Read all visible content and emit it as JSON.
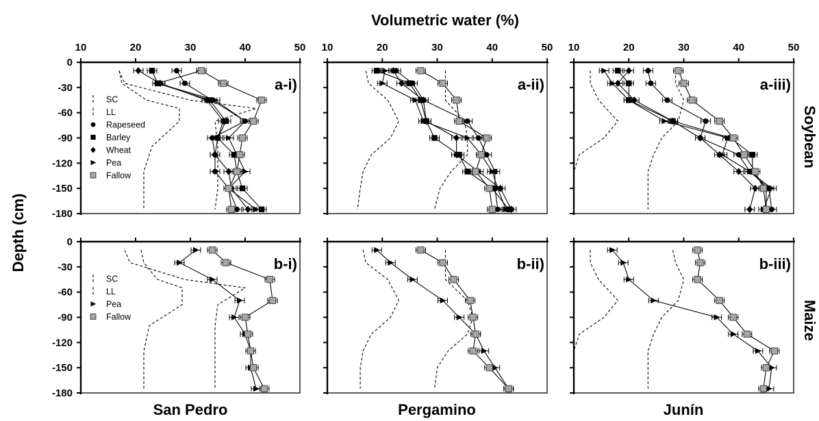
{
  "figure": {
    "top_title": "Volumetric water (%)",
    "y_title": "Depth (cm)",
    "row_labels": [
      "Soybean",
      "Maize"
    ],
    "col_labels": [
      "San Pedro",
      "Pergamino",
      "Junín"
    ],
    "x_ticks": [
      "10",
      "20",
      "30",
      "40",
      "50"
    ],
    "y_ticks": [
      "0",
      "-30",
      "-60",
      "-90",
      "-120",
      "-150",
      "-180"
    ],
    "legend_soybean": [
      "SC",
      "LL",
      "Rapeseed",
      "Barley",
      "Wheat",
      "Pea",
      "Fallow"
    ],
    "legend_maize": [
      "SC",
      "LL",
      "Pea",
      "Fallow"
    ]
  },
  "colors": {
    "ink": "#000000",
    "fallow_fill": "#a6a6a6",
    "fallow_stroke": "#444444"
  },
  "chart_data": [
    {
      "type": "line",
      "panel": "a-i)",
      "crop": "Soybean",
      "site": "San Pedro",
      "xlabel": "Volumetric water (%)",
      "ylabel": "Depth (cm)",
      "xlim": [
        10,
        50
      ],
      "ylim": [
        -180,
        0
      ],
      "depths": [
        -10,
        -25,
        -45,
        -70,
        -90,
        -110,
        -130,
        -150,
        -175
      ],
      "series": [
        {
          "name": "SC",
          "style": "dash",
          "x": [
            17,
            18,
            30,
            42,
            34.5,
            35,
            35,
            35,
            34.5
          ],
          "y": [
            -10,
            -25,
            -45,
            -55,
            -70,
            -100,
            -130,
            -150,
            -175
          ]
        },
        {
          "name": "LL",
          "style": "dash",
          "x": [
            17,
            17.5,
            22,
            28,
            28,
            23,
            21.5,
            21.5,
            21.5
          ],
          "y": [
            -10,
            -25,
            -45,
            -55,
            -70,
            -100,
            -130,
            -150,
            -175
          ]
        },
        {
          "name": "Rapeseed",
          "marker": "circle",
          "x": [
            27.5,
            29,
            34,
            40,
            34,
            34.5,
            34.5,
            37,
            38.5
          ],
          "y": [
            -10,
            -25,
            -45,
            -70,
            -90,
            -110,
            -130,
            -150,
            -175
          ]
        },
        {
          "name": "Barley",
          "marker": "square",
          "x": [
            23,
            24,
            33.5,
            36.5,
            35,
            38,
            38.5,
            39.5,
            43
          ],
          "y": [
            -10,
            -25,
            -45,
            -70,
            -90,
            -110,
            -130,
            -150,
            -175
          ]
        },
        {
          "name": "Wheat",
          "marker": "diamond",
          "x": [
            20.5,
            24.5,
            33,
            36,
            35,
            34.5,
            37,
            37.5,
            40.5
          ],
          "y": [
            -10,
            -25,
            -45,
            -70,
            -90,
            -110,
            -130,
            -150,
            -175
          ]
        },
        {
          "name": "Pea",
          "marker": "triangle",
          "x": [
            32,
            24,
            34.5,
            40,
            37,
            38.5,
            40,
            37,
            42
          ],
          "y": [
            -10,
            -25,
            -45,
            -70,
            -90,
            -110,
            -130,
            -150,
            -175
          ]
        },
        {
          "name": "Fallow",
          "marker": "gsquare",
          "x": [
            32,
            36,
            43,
            41.5,
            39.5,
            39,
            38.5,
            37,
            37.5
          ],
          "y": [
            -10,
            -25,
            -45,
            -70,
            -90,
            -110,
            -130,
            -150,
            -175
          ]
        }
      ]
    },
    {
      "type": "line",
      "panel": "a-ii)",
      "crop": "Soybean",
      "site": "Pergamino",
      "xlabel": "Volumetric water (%)",
      "ylabel": "Depth (cm)",
      "xlim": [
        10,
        50
      ],
      "ylim": [
        -180,
        0
      ],
      "depths": [
        -10,
        -25,
        -45,
        -70,
        -90,
        -110,
        -130,
        -150,
        -175
      ],
      "series": [
        {
          "name": "SC",
          "style": "dash",
          "x": [
            31.5,
            31.5,
            31.5,
            35,
            35.5,
            35.5,
            32.5,
            30.5,
            29.5
          ],
          "y": [
            -10,
            -25,
            -45,
            -70,
            -90,
            -110,
            -130,
            -150,
            -175
          ]
        },
        {
          "name": "LL",
          "style": "dash",
          "x": [
            17,
            17.5,
            21,
            23,
            21.5,
            18,
            16.5,
            16,
            15.5
          ],
          "y": [
            -10,
            -25,
            -45,
            -70,
            -90,
            -110,
            -130,
            -150,
            -175
          ]
        },
        {
          "name": "Rapeseed",
          "marker": "circle",
          "x": [
            22.5,
            25.5,
            27.5,
            35.5,
            37.5,
            39,
            40.5,
            40.5,
            41
          ],
          "y": [
            -10,
            -25,
            -45,
            -70,
            -90,
            -110,
            -130,
            -150,
            -175
          ]
        },
        {
          "name": "Barley",
          "marker": "square",
          "x": [
            19,
            25,
            27,
            28,
            29.5,
            34,
            35.5,
            40,
            43
          ],
          "y": [
            -10,
            -25,
            -45,
            -70,
            -90,
            -110,
            -130,
            -150,
            -175
          ]
        },
        {
          "name": "Wheat",
          "marker": "diamond",
          "x": [
            22,
            23.5,
            27.5,
            28,
            33.5,
            33.5,
            37.5,
            41.5,
            43.5
          ],
          "y": [
            -10,
            -25,
            -45,
            -70,
            -90,
            -110,
            -130,
            -150,
            -175
          ]
        },
        {
          "name": "Pea",
          "marker": "triangle",
          "x": [
            20.5,
            20,
            26,
            27.5,
            35.5,
            38,
            40,
            41,
            42.5
          ],
          "y": [
            -10,
            -25,
            -45,
            -70,
            -90,
            -110,
            -130,
            -150,
            -175
          ]
        },
        {
          "name": "Fallow",
          "marker": "gsquare",
          "x": [
            27,
            31,
            33.5,
            34,
            39,
            38,
            37,
            39.5,
            40
          ],
          "y": [
            -10,
            -25,
            -45,
            -70,
            -90,
            -110,
            -130,
            -150,
            -175
          ]
        }
      ]
    },
    {
      "type": "line",
      "panel": "a-iii)",
      "crop": "Soybean",
      "site": "Junín",
      "xlabel": "Volumetric water (%)",
      "ylabel": "Depth (cm)",
      "xlim": [
        10,
        50
      ],
      "ylim": [
        -180,
        0
      ],
      "depths": [
        -10,
        -25,
        -45,
        -70,
        -90,
        -110,
        -130,
        -150,
        -175
      ],
      "series": [
        {
          "name": "SC",
          "style": "dash",
          "x": [
            28.5,
            28.5,
            30,
            29,
            26,
            24.5,
            23.5,
            23.5,
            23.5
          ],
          "y": [
            -10,
            -25,
            -45,
            -70,
            -90,
            -110,
            -130,
            -150,
            -175
          ]
        },
        {
          "name": "LL",
          "style": "dash",
          "x": [
            13,
            13,
            14.5,
            18,
            15.5,
            11,
            10,
            10,
            10
          ],
          "y": [
            -10,
            -25,
            -45,
            -70,
            -90,
            -110,
            -130,
            -150,
            -175
          ]
        },
        {
          "name": "Rapeseed",
          "marker": "circle",
          "x": [
            23.5,
            24,
            27,
            34,
            33,
            40,
            42,
            45.5,
            46
          ],
          "y": [
            -10,
            -25,
            -45,
            -70,
            -90,
            -110,
            -130,
            -150,
            -175
          ]
        },
        {
          "name": "Barley",
          "marker": "square",
          "x": [
            18,
            20,
            20,
            28,
            38.5,
            42.5,
            42.5,
            45,
            45
          ],
          "y": [
            -10,
            -25,
            -45,
            -70,
            -90,
            -110,
            -130,
            -150,
            -175
          ]
        },
        {
          "name": "Wheat",
          "marker": "diamond",
          "x": [
            20,
            18,
            21,
            28,
            33,
            36.5,
            40,
            43,
            42
          ],
          "y": [
            -10,
            -25,
            -45,
            -70,
            -90,
            -110,
            -130,
            -150,
            -175
          ]
        },
        {
          "name": "Pea",
          "marker": "triangle",
          "x": [
            15.5,
            17,
            20,
            26.5,
            38,
            37,
            42,
            46,
            44.5
          ],
          "y": [
            -10,
            -25,
            -45,
            -70,
            -90,
            -110,
            -130,
            -150,
            -175
          ]
        },
        {
          "name": "Fallow",
          "marker": "gsquare",
          "x": [
            29,
            30,
            31.5,
            36.5,
            39,
            41,
            43,
            44.5,
            45
          ],
          "y": [
            -10,
            -25,
            -45,
            -70,
            -90,
            -110,
            -130,
            -150,
            -175
          ]
        }
      ]
    },
    {
      "type": "line",
      "panel": "b-i)",
      "crop": "Maize",
      "site": "San Pedro",
      "xlabel": "Volumetric water (%)",
      "ylabel": "Depth (cm)",
      "xlim": [
        10,
        50
      ],
      "ylim": [
        -180,
        0
      ],
      "depths": [
        -10,
        -25,
        -45,
        -70,
        -90,
        -110,
        -130,
        -150,
        -175
      ],
      "series": [
        {
          "name": "SC",
          "style": "dash",
          "x": [
            18,
            19,
            29,
            40,
            35,
            34.5,
            34.5,
            34.5,
            34.5
          ],
          "y": [
            -10,
            -25,
            -45,
            -55,
            -75,
            -100,
            -130,
            -150,
            -175
          ]
        },
        {
          "name": "LL",
          "style": "dash",
          "x": [
            21,
            21.5,
            24,
            28.5,
            28.5,
            22.5,
            21.5,
            21.5,
            21.5
          ],
          "y": [
            -10,
            -25,
            -45,
            -55,
            -75,
            -100,
            -130,
            -150,
            -175
          ]
        },
        {
          "name": "Pea",
          "marker": "triangle",
          "x": [
            31,
            28,
            34,
            39,
            38,
            40,
            41,
            41,
            42
          ],
          "y": [
            -10,
            -25,
            -45,
            -70,
            -90,
            -110,
            -130,
            -150,
            -175
          ]
        },
        {
          "name": "Fallow",
          "marker": "gsquare",
          "x": [
            34,
            36.5,
            44.5,
            45,
            40,
            40.5,
            41,
            41.5,
            43.5
          ],
          "y": [
            -10,
            -25,
            -45,
            -70,
            -90,
            -110,
            -130,
            -150,
            -175
          ]
        }
      ]
    },
    {
      "type": "line",
      "panel": "b-ii)",
      "crop": "Maize",
      "site": "Pergamino",
      "xlabel": "Volumetric water (%)",
      "ylabel": "Depth (cm)",
      "xlim": [
        10,
        50
      ],
      "ylim": [
        -180,
        0
      ],
      "depths": [
        -10,
        -25,
        -45,
        -70,
        -90,
        -110,
        -130,
        -150,
        -175
      ],
      "series": [
        {
          "name": "SC",
          "style": "dash",
          "x": [
            31.5,
            31.5,
            31.5,
            35.5,
            36.5,
            35.5,
            32,
            30,
            29.5
          ],
          "y": [
            -10,
            -25,
            -45,
            -70,
            -90,
            -110,
            -130,
            -150,
            -175
          ]
        },
        {
          "name": "LL",
          "style": "dash",
          "x": [
            16.5,
            17,
            21,
            23,
            21.5,
            18,
            16.5,
            16,
            16
          ],
          "y": [
            -10,
            -25,
            -45,
            -70,
            -90,
            -110,
            -130,
            -150,
            -175
          ]
        },
        {
          "name": "Pea",
          "marker": "triangle",
          "x": [
            19,
            21.5,
            25.5,
            31,
            34,
            37,
            38.5,
            40.5,
            43
          ],
          "y": [
            -10,
            -25,
            -45,
            -70,
            -90,
            -110,
            -130,
            -150,
            -175
          ]
        },
        {
          "name": "Fallow",
          "marker": "gsquare",
          "x": [
            27,
            31,
            33,
            36,
            36.5,
            37,
            36.5,
            39.5,
            43
          ],
          "y": [
            -10,
            -25,
            -45,
            -70,
            -90,
            -110,
            -130,
            -150,
            -175
          ]
        }
      ]
    },
    {
      "type": "line",
      "panel": "b-iii)",
      "crop": "Maize",
      "site": "Junín",
      "xlabel": "Volumetric water (%)",
      "ylabel": "Depth (cm)",
      "xlim": [
        10,
        50
      ],
      "ylim": [
        -180,
        0
      ],
      "depths": [
        -10,
        -25,
        -45,
        -70,
        -90,
        -110,
        -130,
        -150,
        -175
      ],
      "series": [
        {
          "name": "SC",
          "style": "dash",
          "x": [
            28,
            28.5,
            30,
            29,
            26,
            24.5,
            23.5,
            23.5,
            23.5
          ],
          "y": [
            -10,
            -25,
            -45,
            -70,
            -90,
            -110,
            -130,
            -150,
            -175
          ]
        },
        {
          "name": "LL",
          "style": "dash",
          "x": [
            13,
            13,
            14.5,
            18,
            15.5,
            11,
            10,
            10,
            10
          ],
          "y": [
            -10,
            -25,
            -45,
            -70,
            -90,
            -110,
            -130,
            -150,
            -175
          ]
        },
        {
          "name": "Pea",
          "marker": "triangle",
          "x": [
            17,
            19,
            20,
            24.5,
            36,
            39,
            43.5,
            46,
            45.5
          ],
          "y": [
            -10,
            -25,
            -45,
            -70,
            -90,
            -110,
            -130,
            -150,
            -175
          ]
        },
        {
          "name": "Fallow",
          "marker": "gsquare",
          "x": [
            32.5,
            33,
            32.5,
            36.5,
            39,
            41.5,
            46.5,
            45,
            44.5
          ],
          "y": [
            -10,
            -25,
            -45,
            -70,
            -90,
            -110,
            -130,
            -150,
            -175
          ]
        }
      ]
    }
  ]
}
